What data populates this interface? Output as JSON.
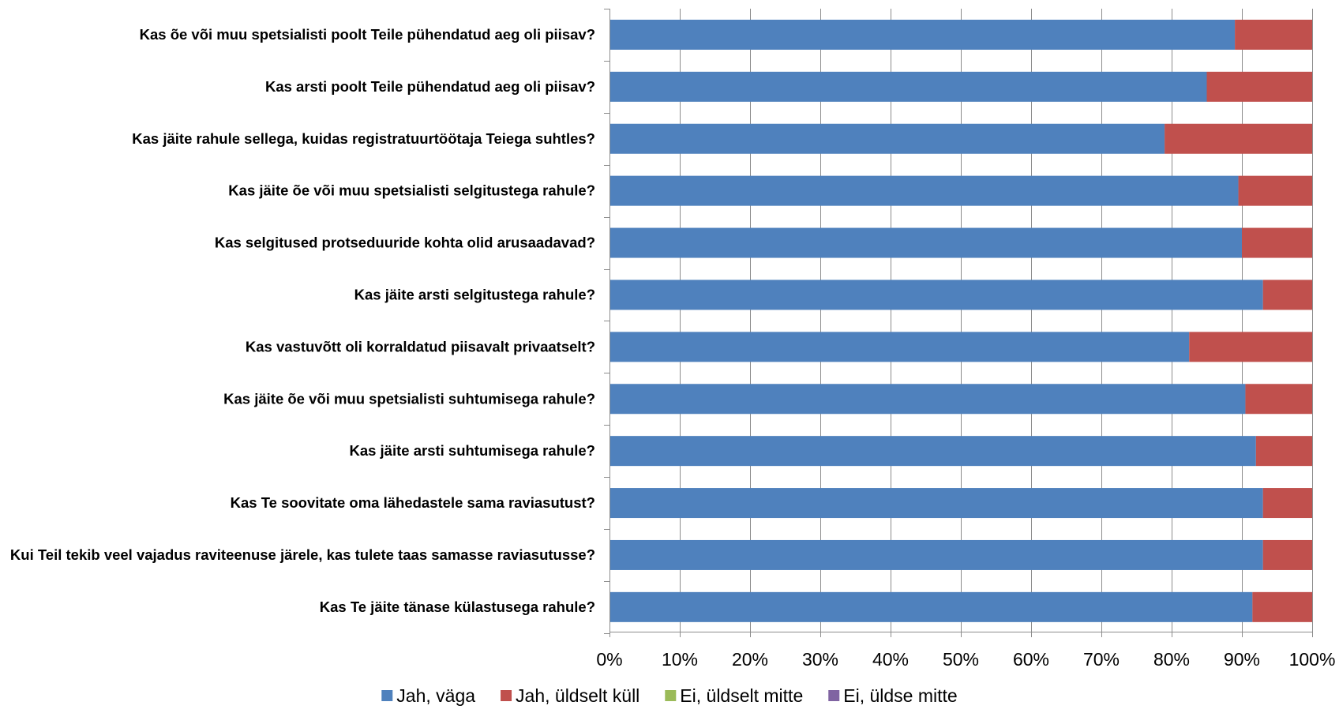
{
  "chart_data": {
    "type": "bar",
    "orientation": "horizontal",
    "stacked": "percent",
    "categories": [
      "Kas õe või muu spetsialisti poolt Teile pühendatud aeg oli piisav?",
      "Kas arsti poolt Teile pühendatud aeg oli piisav?",
      "Kas jäite rahule sellega, kuidas registratuurtöötaja Teiega suhtles?",
      "Kas jäite õe või muu spetsialisti selgitustega rahule?",
      "Kas selgitused protseduuride  kohta olid arusaadavad?",
      "Kas jäite arsti selgitustega rahule?",
      "Kas vastuvõtt oli korraldatud piisavalt privaatselt?",
      "Kas jäite õe või muu spetsialisti suhtumisega rahule?",
      "Kas jäite arsti suhtumisega rahule?",
      "Kas Te soovitate oma lähedastele sama raviasutust?",
      "Kui Teil tekib veel  vajadus raviteenuse järele, kas tulete taas samasse raviasutusse?",
      "Kas Te jäite tänase külastusega rahule?"
    ],
    "series": [
      {
        "name": "Jah, väga",
        "color": "#4f81bd",
        "values": [
          89,
          85,
          79,
          89.5,
          90,
          93,
          82.5,
          90.5,
          92,
          93,
          93,
          91.5
        ]
      },
      {
        "name": "Jah, üldselt küll",
        "color": "#c0504d",
        "values": [
          11,
          15,
          21,
          10.5,
          10,
          7,
          17.5,
          9.5,
          8,
          7,
          7,
          8.5
        ]
      },
      {
        "name": "Ei, üldselt mitte",
        "color": "#9bbb59",
        "values": [
          0,
          0,
          0,
          0,
          0,
          0,
          0,
          0,
          0,
          0,
          0,
          0
        ]
      },
      {
        "name": "Ei, üldse mitte",
        "color": "#8064a2",
        "values": [
          0,
          0,
          0,
          0,
          0,
          0,
          0,
          0,
          0,
          0,
          0,
          0
        ]
      }
    ],
    "x_ticks": [
      "0%",
      "10%",
      "20%",
      "30%",
      "40%",
      "50%",
      "60%",
      "70%",
      "80%",
      "90%",
      "100%"
    ],
    "xlim": [
      0,
      100
    ],
    "grid": true,
    "legend_position": "bottom",
    "title": "",
    "xlabel": "",
    "ylabel": ""
  }
}
